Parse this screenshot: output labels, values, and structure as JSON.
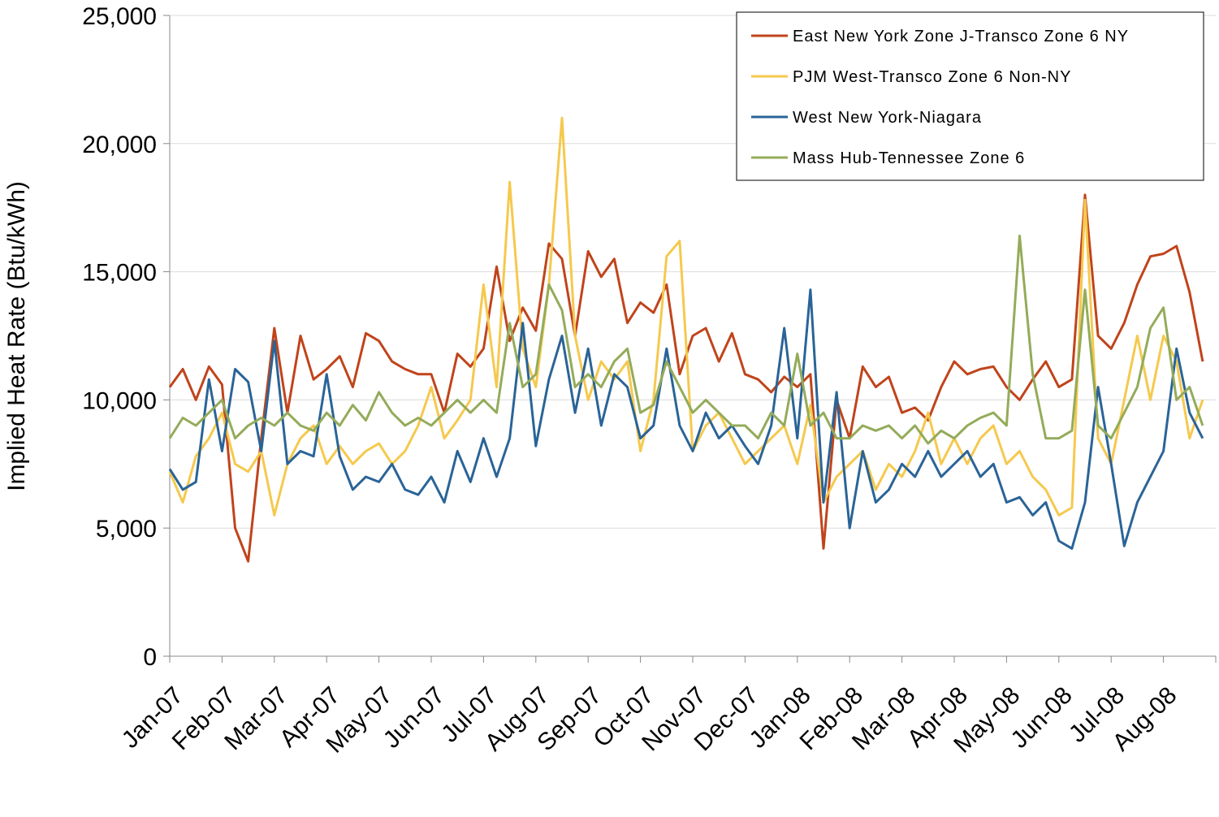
{
  "chart_data": {
    "type": "line",
    "y_label": "Implied Heat Rate (Btu/kWh)",
    "x": [
      0,
      0.25,
      0.5,
      0.75,
      1,
      1.25,
      1.5,
      1.75,
      2,
      2.25,
      2.5,
      2.75,
      3,
      3.25,
      3.5,
      3.75,
      4,
      4.25,
      4.5,
      4.75,
      5,
      5.25,
      5.5,
      5.75,
      6,
      6.25,
      6.5,
      6.75,
      7,
      7.25,
      7.5,
      7.75,
      8,
      8.25,
      8.5,
      8.75,
      9,
      9.25,
      9.5,
      9.75,
      10,
      10.25,
      10.5,
      10.75,
      11,
      11.25,
      11.5,
      11.75,
      12,
      12.25,
      12.5,
      12.75,
      13,
      13.25,
      13.5,
      13.75,
      14,
      14.25,
      14.5,
      14.75,
      15,
      15.25,
      15.5,
      15.75,
      16,
      16.25,
      16.5,
      16.75,
      17,
      17.25,
      17.5,
      17.75,
      18,
      18.25,
      18.5,
      18.75,
      19,
      19.25,
      19.5,
      19.75
    ],
    "xlim": [
      0,
      20
    ],
    "xticks": [
      {
        "value": 0,
        "label": "Jan-07"
      },
      {
        "value": 1,
        "label": "Feb-07"
      },
      {
        "value": 2,
        "label": "Mar-07"
      },
      {
        "value": 3,
        "label": "Apr-07"
      },
      {
        "value": 4,
        "label": "May-07"
      },
      {
        "value": 5,
        "label": "Jun-07"
      },
      {
        "value": 6,
        "label": "Jul-07"
      },
      {
        "value": 7,
        "label": "Aug-07"
      },
      {
        "value": 8,
        "label": "Sep-07"
      },
      {
        "value": 9,
        "label": "Oct-07"
      },
      {
        "value": 10,
        "label": "Nov-07"
      },
      {
        "value": 11,
        "label": "Dec-07"
      },
      {
        "value": 12,
        "label": "Jan-08"
      },
      {
        "value": 13,
        "label": "Feb-08"
      },
      {
        "value": 14,
        "label": "Mar-08"
      },
      {
        "value": 15,
        "label": "Apr-08"
      },
      {
        "value": 16,
        "label": "May-08"
      },
      {
        "value": 17,
        "label": "Jun-08"
      },
      {
        "value": 18,
        "label": "Jul-08"
      },
      {
        "value": 19,
        "label": "Aug-08"
      }
    ],
    "ylim": [
      0,
      25000
    ],
    "yticks": [
      0,
      {
        "value": 5000,
        "label": "5,000"
      },
      {
        "value": 10000,
        "label": "10,000"
      },
      {
        "value": 15000,
        "label": "15,000"
      },
      {
        "value": 20000,
        "label": "20,000"
      },
      {
        "value": 25000,
        "label": "25,000"
      }
    ],
    "grid": true,
    "legend": "upper-right",
    "series": [
      {
        "name": "East New York Zone J-Transco Zone 6 NY",
        "color": "#c0441b",
        "values": [
          10500,
          11200,
          10000,
          11300,
          10600,
          5000,
          3700,
          8500,
          12800,
          9500,
          12500,
          10800,
          11200,
          11700,
          10500,
          12600,
          12300,
          11500,
          11200,
          11000,
          11000,
          9500,
          11800,
          11300,
          12000,
          15200,
          12300,
          13600,
          12700,
          16100,
          15500,
          12500,
          15800,
          14800,
          15500,
          13000,
          13800,
          13400,
          14500,
          11000,
          12500,
          12800,
          11500,
          12600,
          11000,
          10800,
          10300,
          10900,
          10500,
          11000,
          4200,
          10000,
          8500,
          11300,
          10500,
          10900,
          9500,
          9700,
          9200,
          10500,
          11500,
          11000,
          11200,
          11300,
          10500,
          10000,
          10800,
          11500,
          10500,
          10800,
          18000,
          12500,
          12000,
          13000,
          14500,
          15600,
          15700,
          16000,
          14200,
          11500
        ]
      },
      {
        "name": "PJM West-Transco Zone 6 Non-NY",
        "color": "#f5c94e",
        "values": [
          7200,
          6000,
          7800,
          8500,
          9500,
          7500,
          7200,
          8000,
          5500,
          7500,
          8500,
          9000,
          7500,
          8200,
          7500,
          8000,
          8300,
          7500,
          8000,
          9000,
          10500,
          8500,
          9200,
          10000,
          14500,
          10500,
          18500,
          12000,
          10500,
          14500,
          21000,
          12500,
          10000,
          11500,
          10800,
          11500,
          8000,
          10000,
          15600,
          16200,
          8000,
          9000,
          9500,
          8500,
          7500,
          8000,
          8500,
          9000,
          7500,
          9800,
          6000,
          7000,
          7500,
          8000,
          6500,
          7500,
          7000,
          8000,
          9500,
          7500,
          8500,
          7500,
          8500,
          9000,
          7500,
          8000,
          7000,
          6500,
          5500,
          5800,
          17800,
          8500,
          7500,
          10000,
          12500,
          10000,
          12500,
          11500,
          8500,
          10000
        ]
      },
      {
        "name": "West New York-Niagara",
        "color": "#2a6497",
        "values": [
          7300,
          6500,
          6800,
          10800,
          8000,
          11200,
          10700,
          8000,
          12300,
          7500,
          8000,
          7800,
          11000,
          7800,
          6500,
          7000,
          6800,
          7500,
          6500,
          6300,
          7000,
          6000,
          8000,
          6800,
          8500,
          7000,
          8500,
          13000,
          8200,
          10800,
          12500,
          9500,
          12000,
          9000,
          11000,
          10500,
          8500,
          9000,
          12000,
          9000,
          8000,
          9500,
          8500,
          9000,
          8200,
          7500,
          9000,
          12800,
          8500,
          14300,
          6000,
          10300,
          5000,
          8000,
          6000,
          6500,
          7500,
          7000,
          8000,
          7000,
          7500,
          8000,
          7000,
          7500,
          6000,
          6200,
          5500,
          6000,
          4500,
          4200,
          6000,
          10500,
          7500,
          4300,
          6000,
          7000,
          8000,
          12000,
          9500,
          8500
        ]
      },
      {
        "name": "Mass Hub-Tennessee Zone 6",
        "color": "#94ab5a",
        "values": [
          8500,
          9300,
          9000,
          9500,
          10000,
          8500,
          9000,
          9300,
          9000,
          9500,
          9000,
          8800,
          9500,
          9000,
          9800,
          9200,
          10300,
          9500,
          9000,
          9300,
          9000,
          9500,
          10000,
          9500,
          10000,
          9500,
          13000,
          10500,
          11000,
          14500,
          13500,
          10500,
          11000,
          10500,
          11500,
          12000,
          9500,
          9800,
          11500,
          10500,
          9500,
          10000,
          9500,
          9000,
          9000,
          8500,
          9500,
          9000,
          11800,
          9000,
          9500,
          8500,
          8500,
          9000,
          8800,
          9000,
          8500,
          9000,
          8300,
          8800,
          8500,
          9000,
          9300,
          9500,
          9000,
          16400,
          11000,
          8500,
          8500,
          8800,
          14300,
          9000,
          8500,
          9500,
          10500,
          12800,
          13600,
          10000,
          10500,
          9000
        ]
      }
    ]
  }
}
